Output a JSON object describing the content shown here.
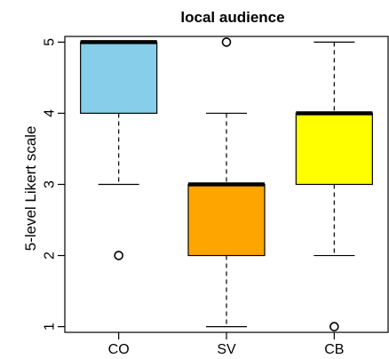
{
  "chart_data": {
    "type": "boxplot",
    "title": "local audience",
    "xlabel": "",
    "ylabel": "5-level Likert scale",
    "ylim": [
      0.92,
      5.08
    ],
    "yticks": [
      "1",
      "2",
      "3",
      "4",
      "5"
    ],
    "grid": false,
    "legend": "none",
    "categories": [
      "CO",
      "SV",
      "CB"
    ],
    "boxes": [
      {
        "category": "CO",
        "min": 3,
        "q1": 4,
        "median": 5,
        "q3": 5,
        "max": 5,
        "outliers": [
          2
        ],
        "color": "#87CEEB"
      },
      {
        "category": "SV",
        "min": 1,
        "q1": 2,
        "median": 3,
        "q3": 3,
        "max": 4,
        "outliers": [
          5
        ],
        "color": "#FFA500"
      },
      {
        "category": "CB",
        "min": 2,
        "q1": 3,
        "median": 4,
        "q3": 4,
        "max": 5,
        "outliers": [
          1
        ],
        "color": "#FFFF00"
      }
    ]
  }
}
